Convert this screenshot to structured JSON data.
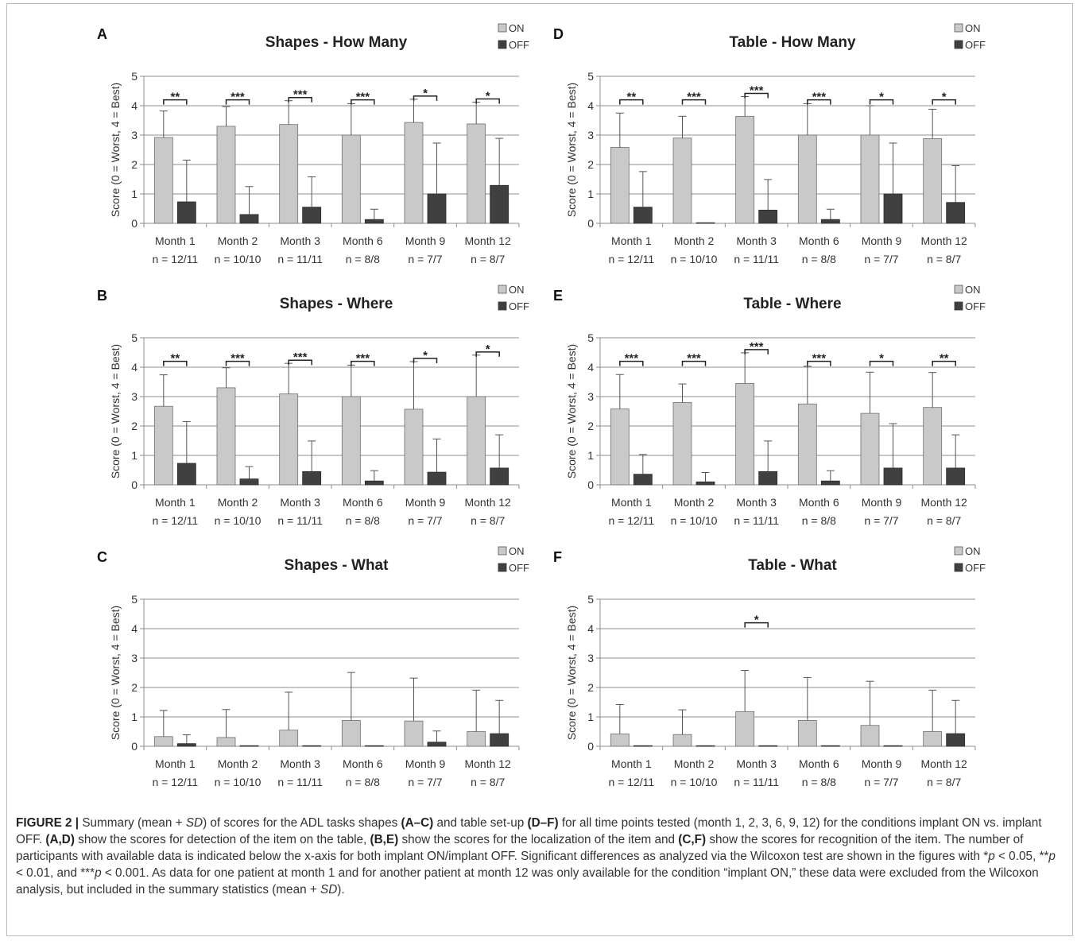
{
  "axis_label": "Score (0 = Worst, 4 = Best)",
  "colors": {
    "on": "#c9c9c9",
    "off": "#404040",
    "grid": "#8c8c8c",
    "axis": "#8c8c8c"
  },
  "chart_data": [
    {
      "panel": "A",
      "title": "Shapes - How Many",
      "type": "bar",
      "ylabel": "Score (0 = Worst, 4 = Best)",
      "ylim": [
        0,
        5
      ],
      "yticks": [
        0,
        1,
        2,
        3,
        4,
        5
      ],
      "grid": true,
      "legend": "top-right",
      "categories": [
        "Month 1",
        "Month 2",
        "Month 3",
        "Month 6",
        "Month 9",
        "Month 12"
      ],
      "sublabels": [
        "n = 12/11",
        "n = 10/10",
        "n = 11/11",
        "n = 8/8",
        "n = 7/7",
        "n = 8/7"
      ],
      "series": [
        {
          "name": "ON",
          "values": [
            2.92,
            3.3,
            3.36,
            3.0,
            3.43,
            3.38
          ],
          "sd": [
            0.9,
            0.67,
            0.81,
            1.07,
            0.79,
            0.74
          ]
        },
        {
          "name": "OFF",
          "values": [
            0.73,
            0.3,
            0.55,
            0.13,
            1.0,
            1.29
          ],
          "sd": [
            1.42,
            0.95,
            1.03,
            0.35,
            1.73,
            1.6
          ]
        }
      ],
      "significance": [
        "**",
        "***",
        "***",
        "***",
        "*",
        "*"
      ]
    },
    {
      "panel": "B",
      "title": "Shapes - Where",
      "type": "bar",
      "ylabel": "Score (0 = Worst, 4 = Best)",
      "ylim": [
        0,
        5
      ],
      "yticks": [
        0,
        1,
        2,
        3,
        4,
        5
      ],
      "grid": true,
      "legend": "top-right",
      "categories": [
        "Month 1",
        "Month 2",
        "Month 3",
        "Month 6",
        "Month 9",
        "Month 12"
      ],
      "sublabels": [
        "n = 12/11",
        "n = 10/10",
        "n = 11/11",
        "n = 8/8",
        "n = 7/7",
        "n = 8/7"
      ],
      "series": [
        {
          "name": "ON",
          "values": [
            2.67,
            3.3,
            3.09,
            3.0,
            2.57,
            3.0
          ],
          "sd": [
            1.07,
            0.68,
            1.04,
            1.07,
            1.62,
            1.41
          ]
        },
        {
          "name": "OFF",
          "values": [
            0.73,
            0.2,
            0.45,
            0.13,
            0.43,
            0.57
          ],
          "sd": [
            1.42,
            0.42,
            1.04,
            0.35,
            1.13,
            1.13
          ]
        }
      ],
      "significance": [
        "**",
        "***",
        "***",
        "***",
        "*",
        "*"
      ]
    },
    {
      "panel": "C",
      "title": "Shapes - What",
      "type": "bar",
      "ylabel": "Score (0 = Worst, 4 = Best)",
      "ylim": [
        0,
        5
      ],
      "yticks": [
        0,
        1,
        2,
        3,
        4,
        5
      ],
      "grid": true,
      "legend": "top-right",
      "categories": [
        "Month 1",
        "Month 2",
        "Month 3",
        "Month 6",
        "Month 9",
        "Month 12"
      ],
      "sublabels": [
        "n = 12/11",
        "n = 10/10",
        "n = 11/11",
        "n = 8/8",
        "n = 7/7",
        "n = 8/7"
      ],
      "series": [
        {
          "name": "ON",
          "values": [
            0.33,
            0.3,
            0.55,
            0.88,
            0.86,
            0.5
          ],
          "sd": [
            0.89,
            0.95,
            1.29,
            1.63,
            1.46,
            1.41
          ]
        },
        {
          "name": "OFF",
          "values": [
            0.09,
            0.0,
            0.0,
            0.0,
            0.14,
            0.43
          ],
          "sd": [
            0.3,
            0,
            0,
            0,
            0.38,
            1.13
          ]
        }
      ],
      "significance": [
        "",
        "",
        "",
        "",
        "",
        ""
      ]
    },
    {
      "panel": "D",
      "title": "Table - How Many",
      "type": "bar",
      "ylabel": "Score (0 = Worst, 4 = Best)",
      "ylim": [
        0,
        5
      ],
      "yticks": [
        0,
        1,
        2,
        3,
        4,
        5
      ],
      "grid": true,
      "legend": "top-right",
      "categories": [
        "Month 1",
        "Month 2",
        "Month 3",
        "Month 6",
        "Month 9",
        "Month 12"
      ],
      "sublabels": [
        "n = 12/11",
        "n = 10/10",
        "n = 11/11",
        "n = 8/8",
        "n = 7/7",
        "n = 8/7"
      ],
      "series": [
        {
          "name": "ON",
          "values": [
            2.58,
            2.9,
            3.64,
            3.0,
            3.0,
            2.88
          ],
          "sd": [
            1.17,
            0.74,
            0.67,
            1.07,
            1.0,
            1.0
          ]
        },
        {
          "name": "OFF",
          "values": [
            0.55,
            0.0,
            0.45,
            0.13,
            1.0,
            0.71
          ],
          "sd": [
            1.21,
            0,
            1.04,
            0.35,
            1.73,
            1.25
          ]
        }
      ],
      "significance": [
        "**",
        "***",
        "***",
        "***",
        "*",
        "*"
      ]
    },
    {
      "panel": "E",
      "title": "Table - Where",
      "type": "bar",
      "ylabel": "Score (0 = Worst, 4 = Best)",
      "ylim": [
        0,
        5
      ],
      "yticks": [
        0,
        1,
        2,
        3,
        4,
        5
      ],
      "grid": true,
      "legend": "top-right",
      "categories": [
        "Month 1",
        "Month 2",
        "Month 3",
        "Month 6",
        "Month 9",
        "Month 12"
      ],
      "sublabels": [
        "n = 12/11",
        "n = 10/10",
        "n = 11/11",
        "n = 8/8",
        "n = 7/7",
        "n = 8/7"
      ],
      "series": [
        {
          "name": "ON",
          "values": [
            2.58,
            2.8,
            3.45,
            2.75,
            2.43,
            2.63
          ],
          "sd": [
            1.17,
            0.63,
            1.04,
            1.28,
            1.4,
            1.19
          ]
        },
        {
          "name": "OFF",
          "values": [
            0.36,
            0.1,
            0.45,
            0.13,
            0.57,
            0.57
          ],
          "sd": [
            0.67,
            0.32,
            1.04,
            0.35,
            1.51,
            1.13
          ]
        }
      ],
      "significance": [
        "***",
        "***",
        "***",
        "***",
        "*",
        "**"
      ]
    },
    {
      "panel": "F",
      "title": "Table - What",
      "type": "bar",
      "ylabel": "Score (0 = Worst, 4 = Best)",
      "ylim": [
        0,
        5
      ],
      "yticks": [
        0,
        1,
        2,
        3,
        4,
        5
      ],
      "grid": true,
      "legend": "top-right",
      "categories": [
        "Month 1",
        "Month 2",
        "Month 3",
        "Month 6",
        "Month 9",
        "Month 12"
      ],
      "sublabels": [
        "n = 12/11",
        "n = 10/10",
        "n = 11/11",
        "n = 8/8",
        "n = 7/7",
        "n = 8/7"
      ],
      "series": [
        {
          "name": "ON",
          "values": [
            0.42,
            0.4,
            1.18,
            0.88,
            0.71,
            0.5
          ],
          "sd": [
            1.0,
            0.84,
            1.4,
            1.46,
            1.5,
            1.41
          ]
        },
        {
          "name": "OFF",
          "values": [
            0.0,
            0.0,
            0.0,
            0.0,
            0.0,
            0.43
          ],
          "sd": [
            0,
            0,
            0,
            0,
            0,
            1.13
          ]
        }
      ],
      "significance": [
        "",
        "",
        "*",
        "",
        "",
        ""
      ]
    }
  ],
  "caption": {
    "label": "FIGURE 2 |",
    "parts": [
      {
        "t": " Summary (mean + "
      },
      {
        "t": "SD",
        "i": true
      },
      {
        "t": ") of scores for the ADL tasks shapes "
      },
      {
        "t": "(A–C)",
        "b": true
      },
      {
        "t": " and table set-up "
      },
      {
        "t": "(D–F)",
        "b": true
      },
      {
        "t": " for all time points tested (month 1, 2, 3, 6, 9, 12) for the conditions implant ON vs. implant OFF. "
      },
      {
        "t": "(A,D)",
        "b": true
      },
      {
        "t": " show the scores for detection of the item on the table, "
      },
      {
        "t": "(B,E)",
        "b": true
      },
      {
        "t": " show the scores for the localization of the item and "
      },
      {
        "t": "(C,F)",
        "b": true
      },
      {
        "t": " show the scores for recognition of the item. The number of participants with available data is indicated below the x-axis for both implant ON/implant OFF. Significant differences as analyzed via the Wilcoxon test are shown in the figures with *"
      },
      {
        "t": "p",
        "i": true
      },
      {
        "t": " < 0.05, **"
      },
      {
        "t": "p",
        "i": true
      },
      {
        "t": " < 0.01, and ***"
      },
      {
        "t": "p",
        "i": true
      },
      {
        "t": " < 0.001. As data for one patient at month 1 and for another patient at month 12 was only available for the condition “implant ON,” these data were excluded from the Wilcoxon analysis, but included in the summary statistics (mean + "
      },
      {
        "t": "SD",
        "i": true
      },
      {
        "t": ")."
      }
    ]
  }
}
